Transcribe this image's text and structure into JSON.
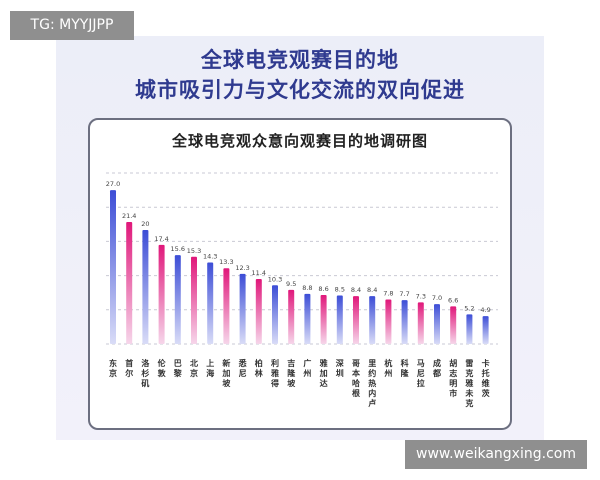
{
  "watermarks": {
    "top_left": "TG: MYYJJPP",
    "bottom_right": "www.weikangxing.com"
  },
  "headline": {
    "line1": "全球电竞观赛目的地",
    "line2": "城市吸引力与文化交流的双向促进"
  },
  "colors": {
    "bar_blue_top": "#3c4dd6",
    "bar_blue_bottom": "#d9dcf7",
    "bar_pink_top": "#e0177a",
    "bar_pink_bottom": "#f6d6ea",
    "title_blue": "#2f3a8f"
  },
  "chart_data": {
    "type": "bar",
    "title": "全球电竞观众意向观赛目的地调研图",
    "categories": [
      "东京",
      "首尔",
      "洛杉矶",
      "伦敦",
      "巴黎",
      "北京",
      "上海",
      "新加坡",
      "悉尼",
      "柏林",
      "利雅得",
      "吉隆坡",
      "广州",
      "雅加达",
      "深圳",
      "哥本哈根",
      "里约热内卢",
      "杭州",
      "科隆",
      "马尼拉",
      "成都",
      "胡志明市",
      "雷克雅未克",
      "卡托维茨"
    ],
    "values": [
      27.0,
      21.4,
      20,
      17.4,
      15.6,
      15.3,
      14.3,
      13.3,
      12.3,
      11.4,
      10.3,
      9.5,
      8.8,
      8.6,
      8.5,
      8.4,
      8.4,
      7.8,
      7.7,
      7.3,
      7.0,
      6.6,
      5.2,
      4.9
    ],
    "value_labels": [
      "27.0",
      "21.4",
      "20",
      "17.4",
      "15.6",
      "15.3",
      "14.3",
      "13.3",
      "12.3",
      "11.4",
      "10.3",
      "9.5",
      "8.8",
      "8.6",
      "8.5",
      "8.4",
      "8.4",
      "7.8",
      "7.7",
      "7.3",
      "7.0",
      "6.6",
      "5.2",
      "4.9"
    ],
    "bar_colors": [
      "blue",
      "pink",
      "blue",
      "pink",
      "blue",
      "pink",
      "blue",
      "pink",
      "blue",
      "pink",
      "blue",
      "pink",
      "blue",
      "pink",
      "blue",
      "pink",
      "blue",
      "pink",
      "blue",
      "pink",
      "blue",
      "pink",
      "blue",
      "blue"
    ],
    "ylim": [
      0,
      30
    ],
    "grid": "dashed horizontal",
    "xlabel": "",
    "ylabel": ""
  }
}
